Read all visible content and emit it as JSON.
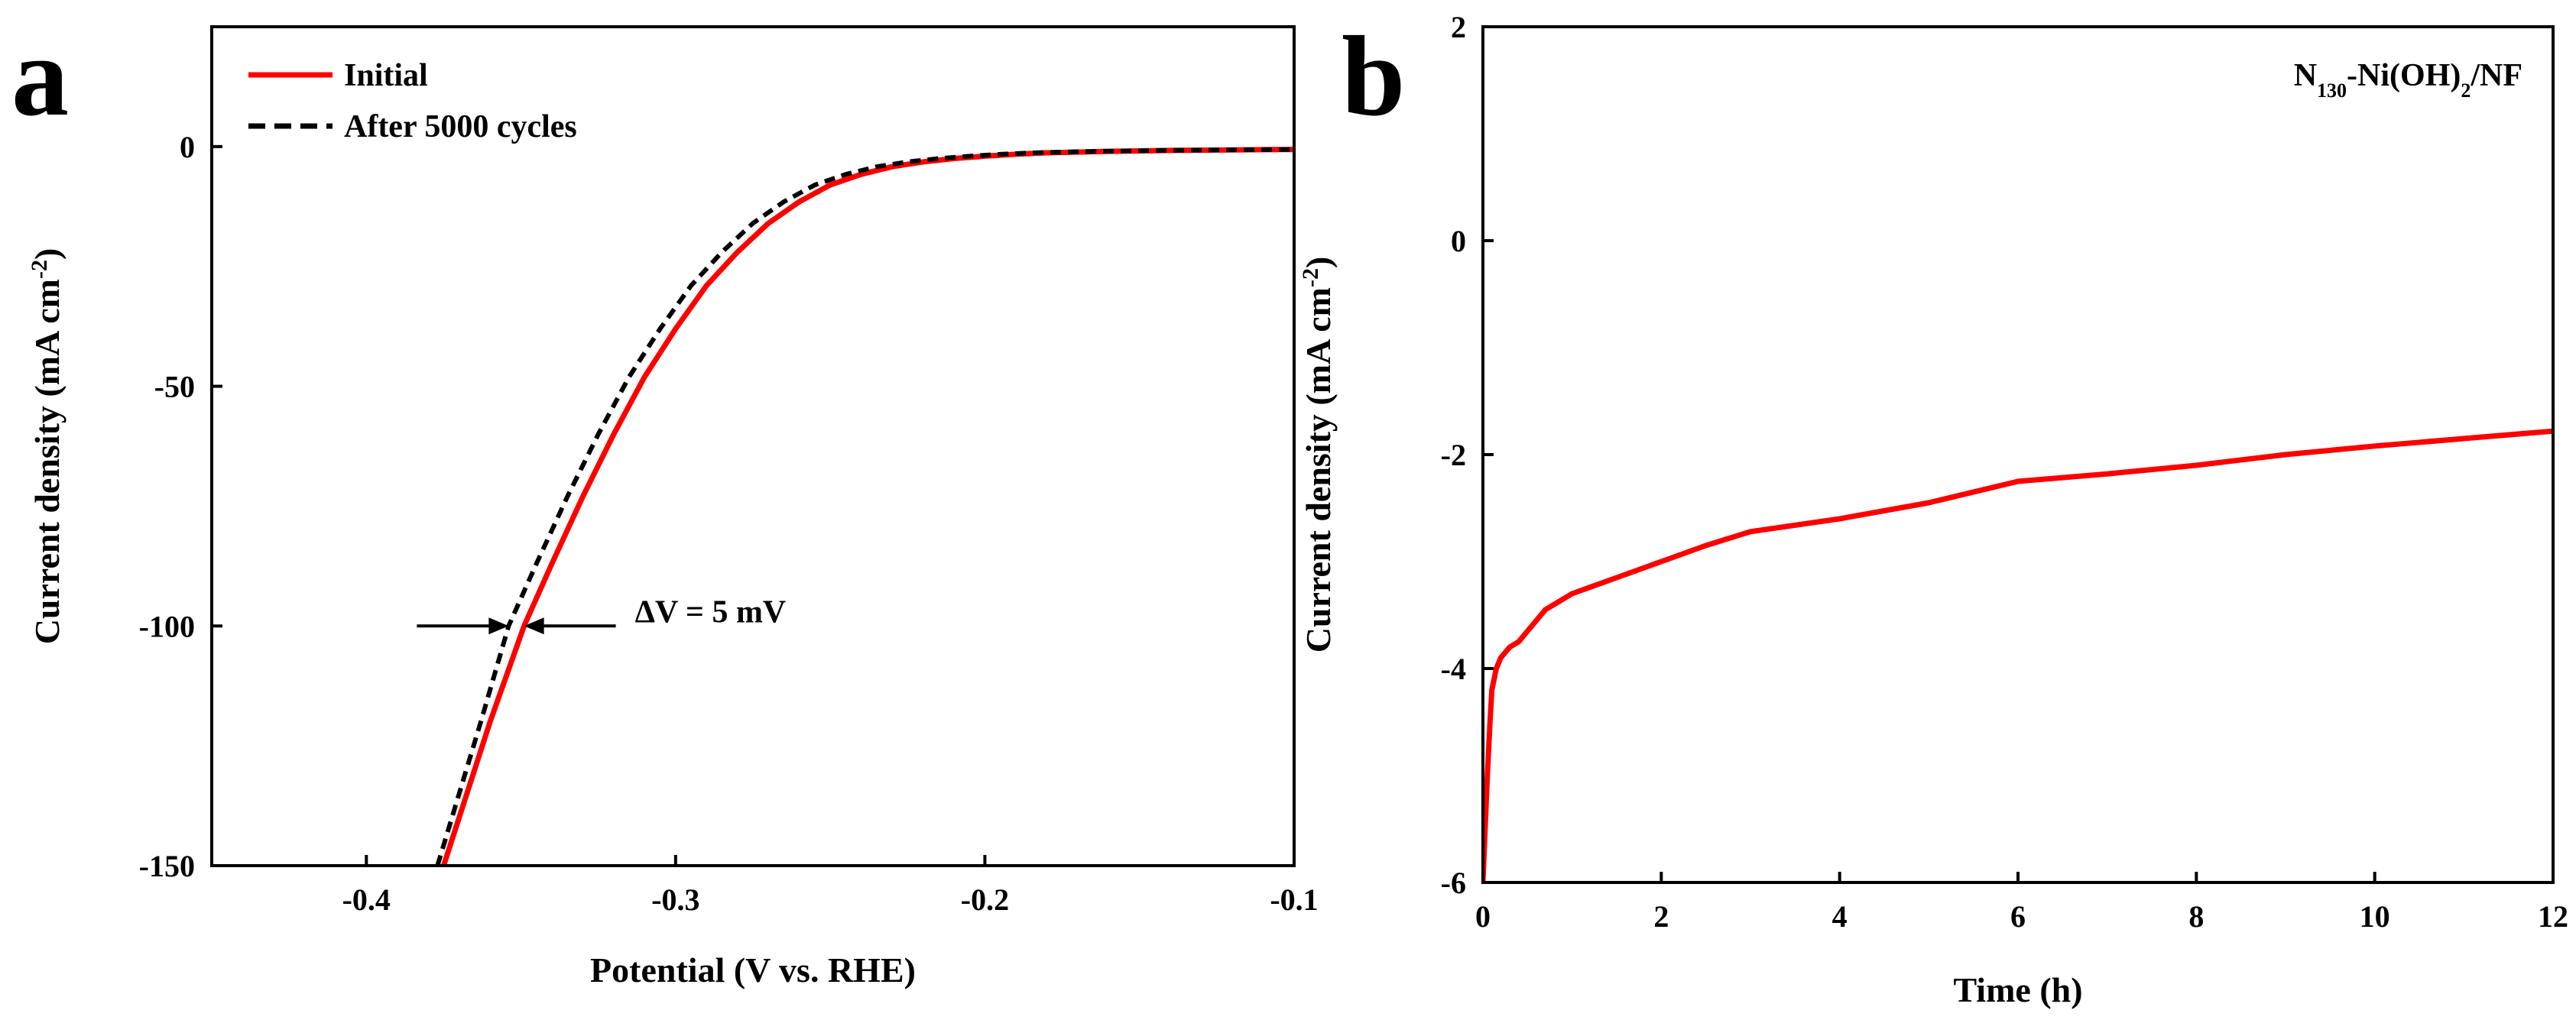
{
  "chart_data": [
    {
      "panel": "a",
      "type": "line",
      "title": "",
      "xlabel": "Potential (V vs. RHE)",
      "ylabel_main": "Current density (mA cm",
      "ylabel_sup": "-2",
      "ylabel_end": ")",
      "xlim": [
        -0.45,
        -0.1
      ],
      "ylim": [
        -150,
        25
      ],
      "xticks": [
        -0.4,
        -0.3,
        -0.2,
        -0.1
      ],
      "xtick_labels": [
        "-0.4",
        "-0.3",
        "-0.2",
        "-0.1"
      ],
      "yticks": [
        0,
        -50,
        -100,
        -150
      ],
      "ytick_labels": [
        "0",
        "-50",
        "-100",
        "-150"
      ],
      "legend_position": "top-left",
      "series": [
        {
          "name": "Initial",
          "color": "#ff0000",
          "style": "solid",
          "x": [
            -0.375,
            -0.36,
            -0.349,
            -0.34,
            -0.33,
            -0.32,
            -0.31,
            -0.3,
            -0.29,
            -0.28,
            -0.27,
            -0.26,
            -0.25,
            -0.24,
            -0.23,
            -0.22,
            -0.21,
            -0.2,
            -0.19,
            -0.18,
            -0.16,
            -0.14,
            -0.12,
            -0.1
          ],
          "y": [
            -150,
            -120,
            -100,
            -87,
            -73,
            -60,
            -48,
            -38,
            -29,
            -22,
            -16,
            -11.5,
            -8,
            -5.8,
            -4.2,
            -3.2,
            -2.5,
            -2,
            -1.6,
            -1.3,
            -1,
            -0.8,
            -0.7,
            -0.6
          ]
        },
        {
          "name": "After 5000 cycles",
          "color": "#000000",
          "style": "dashed",
          "x": [
            -0.377,
            -0.363,
            -0.354,
            -0.345,
            -0.335,
            -0.325,
            -0.315,
            -0.305,
            -0.295,
            -0.285,
            -0.275,
            -0.265,
            -0.255,
            -0.245,
            -0.235,
            -0.225,
            -0.215,
            -0.205,
            -0.195,
            -0.185,
            -0.165,
            -0.145,
            -0.125,
            -0.1
          ],
          "y": [
            -150,
            -120,
            -100,
            -87,
            -73,
            -60,
            -48,
            -38,
            -29,
            -22,
            -16,
            -11.5,
            -8,
            -5.8,
            -4.2,
            -3.2,
            -2.5,
            -2,
            -1.6,
            -1.3,
            -1,
            -0.8,
            -0.7,
            -0.6
          ]
        }
      ],
      "annotation": {
        "text": "ΔV = 5 mV",
        "x_initial": -0.349,
        "x_after": -0.354,
        "y": -100
      }
    },
    {
      "panel": "b",
      "type": "line",
      "title": "",
      "xlabel": "Time (h)",
      "ylabel_main": "Current density (mA cm",
      "ylabel_sup": "-2",
      "ylabel_end": ")",
      "xlim": [
        0,
        12
      ],
      "ylim": [
        -6,
        2
      ],
      "xticks": [
        0,
        2,
        4,
        6,
        8,
        10,
        12
      ],
      "xtick_labels": [
        "0",
        "2",
        "4",
        "6",
        "8",
        "10",
        "12"
      ],
      "yticks": [
        2,
        0,
        -2,
        -4,
        -6
      ],
      "ytick_labels": [
        "2",
        "0",
        "-2",
        "-4",
        "-6"
      ],
      "sample_label": {
        "main": "N",
        "sub1": "130",
        "mid": "-Ni(OH)",
        "sub2": "2",
        "end": "/NF"
      },
      "series": [
        {
          "name": "N130-Ni(OH)2/NF",
          "color": "#ff0000",
          "style": "solid",
          "x": [
            0,
            0.02,
            0.05,
            0.08,
            0.1,
            0.15,
            0.2,
            0.3,
            0.4,
            0.5,
            0.6,
            0.7,
            0.8,
            0.9,
            1.0,
            1.5,
            2,
            2.5,
            3,
            4,
            5,
            6,
            7,
            8,
            9,
            10,
            11,
            12
          ],
          "y": [
            -6,
            -5.6,
            -5.0,
            -4.5,
            -4.2,
            -4.0,
            -3.9,
            -3.8,
            -3.75,
            -3.65,
            -3.55,
            -3.45,
            -3.4,
            -3.35,
            -3.3,
            -3.15,
            -3.0,
            -2.85,
            -2.72,
            -2.6,
            -2.45,
            -2.25,
            -2.18,
            -2.1,
            -2.0,
            -1.92,
            -1.85,
            -1.78
          ]
        }
      ]
    }
  ],
  "panel_labels": {
    "a": "a",
    "b": "b"
  },
  "legend": {
    "initial": "Initial",
    "after": "After 5000 cycles"
  },
  "annotation_text": "ΔV = 5 mV"
}
